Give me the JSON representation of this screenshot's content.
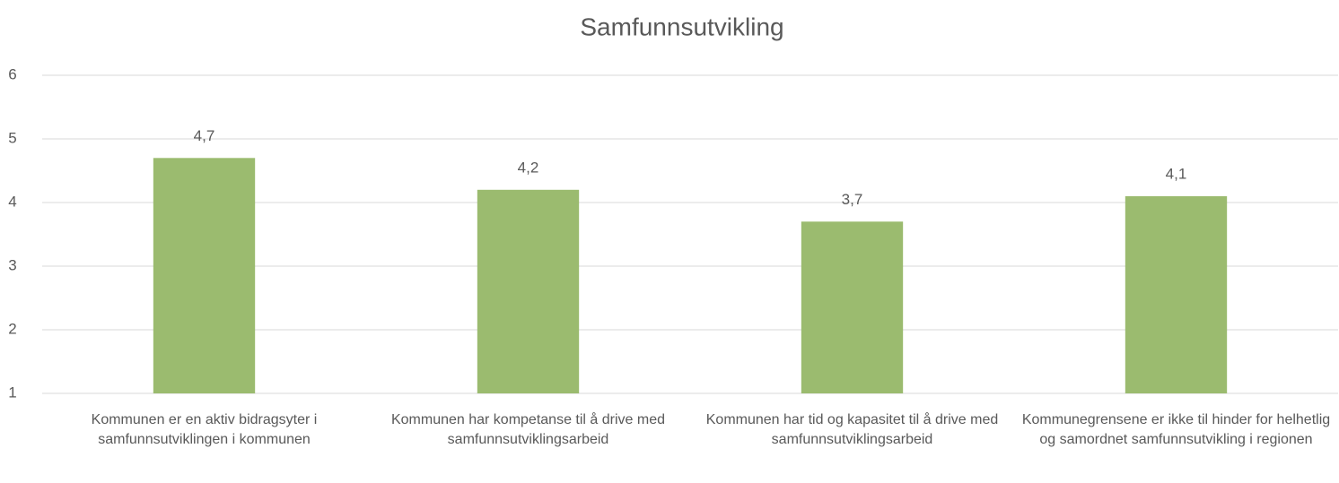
{
  "chart_data": {
    "type": "bar",
    "title": "Samfunnsutvikling",
    "categories": [
      "Kommunen er en aktiv bidragsyter i samfunnsutviklingen i kommunen",
      "Kommunen har kompetanse til å drive med samfunnsutviklingsarbeid",
      "Kommunen har tid og kapasitet til å drive med samfunnsutviklingsarbeid",
      "Kommunegrensene er ikke til hinder for helhetlig og samordnet samfunnsutvikling i regionen"
    ],
    "values": [
      4.7,
      4.2,
      3.7,
      4.1
    ],
    "value_labels": [
      "4,7",
      "4,2",
      "3,7",
      "4,1"
    ],
    "color": "#9bbb6f",
    "ylim": [
      1,
      6
    ],
    "yticks": [
      1,
      2,
      3,
      4,
      5,
      6
    ],
    "grid": true
  }
}
